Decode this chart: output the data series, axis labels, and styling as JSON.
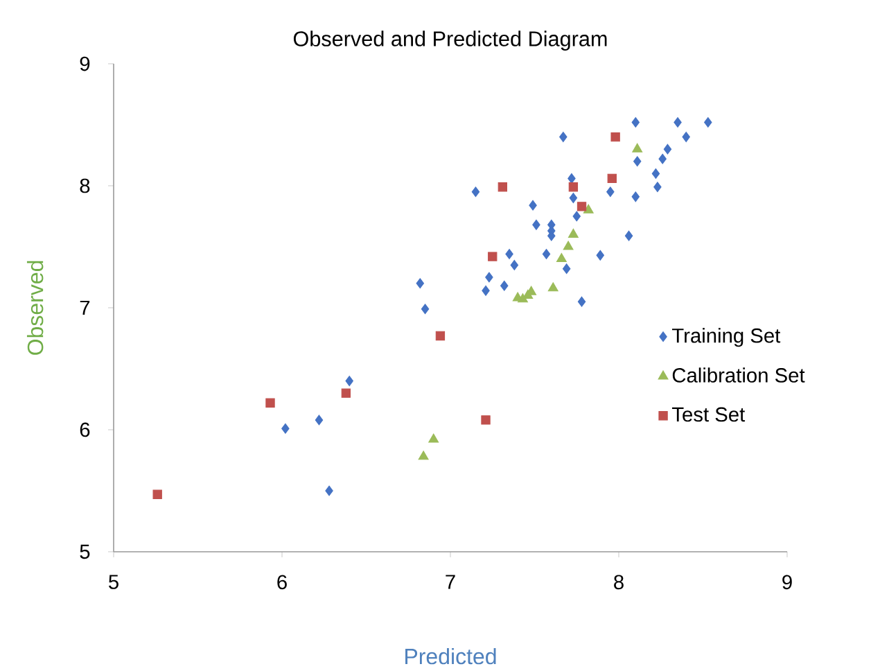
{
  "chart_data": {
    "type": "scatter",
    "title": "Observed and Predicted Diagram",
    "xlabel": "Predicted",
    "ylabel": "Observed",
    "xlim": [
      5,
      9
    ],
    "xticks": [
      5,
      6,
      7,
      8,
      9
    ],
    "ylim": [
      5,
      9
    ],
    "yticks": [
      5,
      6,
      7,
      8,
      9
    ],
    "legend": "right",
    "series": [
      {
        "name": "Training Set",
        "color": "#4472c4",
        "marker": "diamond",
        "x": [
          7.15,
          7.35,
          7.38,
          7.23,
          7.21,
          7.32,
          6.82,
          6.85,
          6.4,
          6.22,
          6.02,
          6.28,
          8.1,
          8.35,
          8.53,
          7.67,
          8.4,
          8.29,
          8.11,
          8.26,
          8.22,
          8.23,
          7.72,
          7.95,
          8.1,
          7.73,
          7.75,
          7.49,
          7.51,
          7.6,
          7.6,
          7.6,
          8.06,
          7.89,
          7.69,
          7.78,
          7.57
        ],
        "values": [
          7.95,
          7.44,
          7.35,
          7.25,
          7.14,
          7.18,
          7.2,
          6.99,
          6.4,
          6.08,
          6.01,
          5.5,
          8.52,
          8.52,
          8.52,
          8.4,
          8.4,
          8.3,
          8.2,
          8.22,
          8.1,
          7.99,
          8.06,
          7.95,
          7.91,
          7.9,
          7.75,
          7.84,
          7.68,
          7.68,
          7.63,
          7.59,
          7.59,
          7.43,
          7.32,
          7.05,
          7.44
        ]
      },
      {
        "name": "Calibration Set",
        "color": "#9bbb59",
        "marker": "triangle",
        "x": [
          8.11,
          7.82,
          7.73,
          7.7,
          7.66,
          7.61,
          7.48,
          7.46,
          7.43,
          7.4,
          6.9,
          6.84
        ],
        "values": [
          8.3,
          7.8,
          7.6,
          7.5,
          7.4,
          7.16,
          7.13,
          7.1,
          7.07,
          7.08,
          5.92,
          5.78
        ]
      },
      {
        "name": "Test Set",
        "color": "#c0504d",
        "marker": "square",
        "x": [
          5.26,
          5.93,
          6.38,
          6.94,
          7.21,
          7.25,
          7.31,
          7.98,
          7.96,
          7.73,
          7.78
        ],
        "values": [
          5.47,
          6.22,
          6.3,
          6.77,
          6.08,
          7.42,
          7.99,
          8.4,
          8.06,
          7.99,
          7.83
        ]
      }
    ]
  }
}
